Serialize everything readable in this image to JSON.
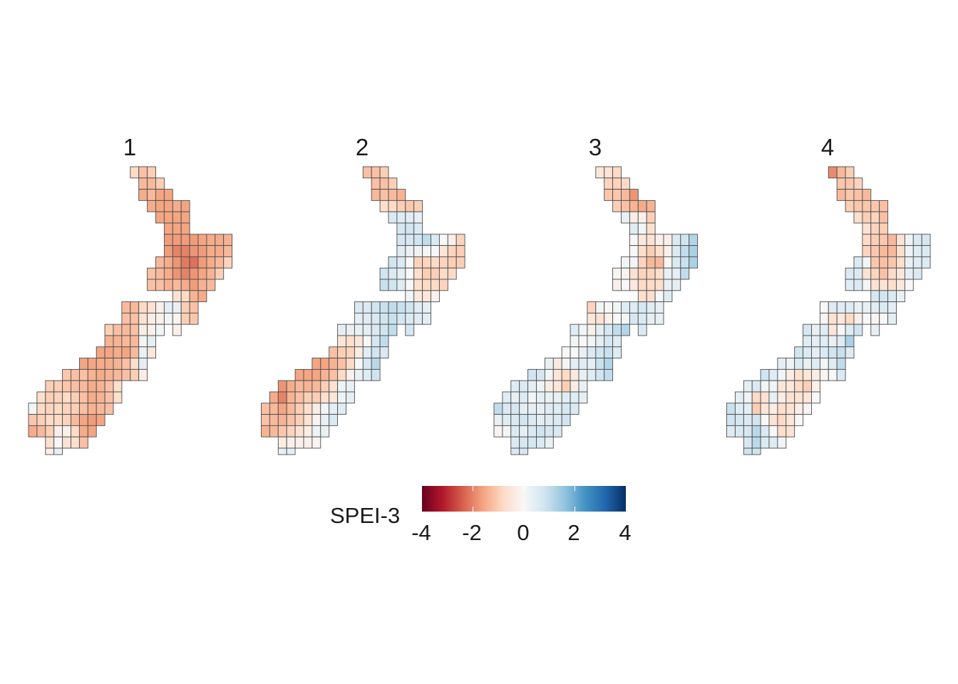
{
  "legend": {
    "title": "SPEI-3",
    "limits": [
      -4,
      4
    ],
    "ticks": [
      "-4",
      "-2",
      "0",
      "2",
      "4"
    ],
    "palette": [
      "#67001f",
      "#b2182b",
      "#d6604d",
      "#f4a582",
      "#fddbc7",
      "#f7f7f7",
      "#d1e5f0",
      "#92c5de",
      "#4393c3",
      "#2166ac",
      "#053061"
    ]
  },
  "chart_data": {
    "type": "heatmap",
    "value_name": "SPEI-3",
    "cell_size_deg": 0.5,
    "rows": [
      {
        "lat": -34.25,
        "lon_start": 172.75
      },
      {
        "lat": -34.75,
        "lon_start": 173.25
      },
      {
        "lat": -35.25,
        "lon_start": 173.25
      },
      {
        "lat": -35.75,
        "lon_start": 173.75
      },
      {
        "lat": -36.25,
        "lon_start": 174.25
      },
      {
        "lat": -36.75,
        "lon_start": 174.75
      },
      {
        "lat": -37.25,
        "lon_start": 174.75
      },
      {
        "lat": -37.75,
        "lon_start": 174.75
      },
      {
        "lat": -38.25,
        "lon_start": 174.25
      },
      {
        "lat": -38.75,
        "lon_start": 173.75
      },
      {
        "lat": -39.25,
        "lon_start": 173.75
      },
      {
        "lat": -39.75,
        "lon_start": 175.25
      },
      {
        "lat": -40.25,
        "lon_start": 172.25
      },
      {
        "lat": -40.75,
        "lon_start": 172.25
      },
      {
        "lat": -41.25,
        "lon_start": 171.25
      },
      {
        "lat": -41.75,
        "lon_start": 171.25
      },
      {
        "lat": -42.25,
        "lon_start": 170.75
      },
      {
        "lat": -42.75,
        "lon_start": 169.75
      },
      {
        "lat": -43.25,
        "lon_start": 168.75
      },
      {
        "lat": -43.75,
        "lon_start": 167.75
      },
      {
        "lat": -44.25,
        "lon_start": 167.25
      },
      {
        "lat": -44.75,
        "lon_start": 166.75
      },
      {
        "lat": -45.25,
        "lon_start": 166.75
      },
      {
        "lat": -45.75,
        "lon_start": 166.75
      },
      {
        "lat": -46.25,
        "lon_start": 167.75
      },
      {
        "lat": -46.75,
        "lon_start": 167.75
      }
    ],
    "panels": [
      {
        "title": "1",
        "values": [
          [
            -0.8,
            -1.2,
            -1.0
          ],
          [
            -1.3,
            -1.3,
            -1.0
          ],
          [
            -1.5,
            -1.3,
            -1.6,
            -1.6
          ],
          [
            -1.5,
            -1.6,
            -1.6,
            -1.5,
            -1.6
          ],
          [
            -1.6,
            -1.6,
            -1.6,
            -1.6
          ],
          [
            -1.6,
            -1.6,
            -1.6
          ],
          [
            -1.7,
            -1.7,
            -1.7,
            -1.7,
            -1.6,
            -1.5,
            -1.5,
            -1.4
          ],
          [
            -1.7,
            -2.0,
            -2.0,
            -1.8,
            -1.7,
            -1.5,
            -1.5,
            -1.3
          ],
          [
            -1.3,
            -1.5,
            -1.8,
            -2.1,
            -2.2,
            -1.7,
            -1.5,
            -1.3,
            -0.9
          ],
          [
            -1.2,
            -1.3,
            -1.5,
            -1.8,
            -2.0,
            -1.8,
            -1.6,
            -1.4,
            -1.0
          ],
          [
            -1.2,
            -1.2,
            -1.4,
            -1.3,
            -1.5,
            -1.7,
            -1.4,
            -1.3
          ],
          [
            -0.6,
            -0.8,
            -1.4,
            -1.5
          ],
          [
            -1.3,
            -1.3,
            -0.8,
            -0.6,
            -0.2,
            0.4,
            0.3,
            -1.0,
            -1.2
          ],
          [
            -1.2,
            -1.2,
            -0.6,
            -0.3,
            -0.2,
            0.1,
            -0.1,
            -1.0,
            -1.1
          ],
          [
            -1.0,
            -1.2,
            -1.3,
            -1.2,
            -0.3,
            -0.2,
            0.1,
            null,
            -0.2
          ],
          [
            -1.4,
            -1.4,
            -1.3,
            -1.3,
            0.1,
            0.4
          ],
          [
            -1.6,
            -1.6,
            -1.5,
            -1.6,
            -1.3,
            0.3,
            -0.5
          ],
          [
            -1.6,
            -1.6,
            -1.5,
            -1.5,
            -1.4,
            -1.2,
            -0.7,
            0.4
          ],
          [
            -1.1,
            -1.2,
            -1.2,
            -1.4,
            -1.5,
            -1.4,
            -1.3,
            -1.2,
            -1.0,
            -0.3
          ],
          [
            -1.0,
            -1.0,
            -1.1,
            -1.2,
            -1.3,
            -1.5,
            -1.4,
            -1.2,
            -0.7
          ],
          [
            -0.7,
            -1.0,
            -0.9,
            -0.8,
            -1.0,
            -1.2,
            -1.5,
            -1.4,
            -1.2,
            -0.7
          ],
          [
            0.1,
            -0.8,
            -0.9,
            -0.8,
            -0.9,
            -1.0,
            -1.2,
            -1.4,
            -1.3,
            -1.2
          ],
          [
            -1.1,
            -1.0,
            -0.8,
            -0.8,
            -0.9,
            -1.3,
            -1.6,
            -1.7,
            -1.6
          ],
          [
            -1.5,
            -1.3,
            -1.0,
            -0.2,
            -0.2,
            -0.8,
            -1.5,
            -1.6
          ],
          [
            -0.7,
            0.0,
            -0.6,
            -0.7,
            -1.2
          ],
          [
            -0.3,
            0.3
          ]
        ]
      },
      {
        "title": "2",
        "values": [
          [
            -1.2,
            -1.2,
            -1.0
          ],
          [
            -1.2,
            -1.2,
            -1.0
          ],
          [
            -1.3,
            -1.2,
            -1.3,
            -1.4
          ],
          [
            -0.7,
            -0.8,
            -1.0,
            -1.1,
            -1.0
          ],
          [
            0.6,
            0.5,
            0.5,
            0.3
          ],
          [
            0.7,
            0.8,
            0.6
          ],
          [
            0.7,
            0.7,
            0.8,
            1.0,
            0.6,
            0.0,
            -0.2,
            -0.9
          ],
          [
            0.5,
            0.3,
            0.2,
            0.1,
            0.0,
            -0.5,
            -0.9,
            -1.0
          ],
          [
            0.8,
            0.6,
            0.0,
            -0.9,
            -0.9,
            -0.8,
            -0.9,
            -1.0,
            -1.0
          ],
          [
            0.8,
            0.6,
            0.4,
            0.0,
            -0.7,
            -1.0,
            -1.0,
            -0.8,
            -0.8
          ],
          [
            0.9,
            0.8,
            0.5,
            0.0,
            -0.7,
            -0.8,
            -0.8,
            -0.9
          ],
          [
            0.1,
            -0.4,
            -0.5,
            -0.2
          ],
          [
            0.6,
            0.6,
            0.8,
            0.9,
            1.0,
            0.9,
            0.8,
            0.5,
            0.4
          ],
          [
            0.4,
            0.5,
            0.6,
            0.8,
            0.9,
            0.7,
            0.6,
            0.5,
            0.4
          ],
          [
            0.4,
            0.3,
            0.3,
            0.4,
            0.6,
            0.8,
            1.0,
            null,
            0.7
          ],
          [
            -0.5,
            -0.7,
            -0.5,
            0.0,
            0.7,
            1.0
          ],
          [
            -1.2,
            -1.0,
            -0.9,
            -0.3,
            0.5,
            0.8,
            0.6
          ],
          [
            -1.6,
            -1.6,
            -1.4,
            -1.2,
            -0.8,
            0.0,
            0.7,
            1.1
          ],
          [
            -1.6,
            -1.6,
            -1.6,
            -1.4,
            -1.2,
            -0.8,
            -0.2,
            0.3,
            0.5,
            0.8
          ],
          [
            -1.8,
            -1.5,
            -1.3,
            -1.4,
            -1.3,
            -1.0,
            -0.6,
            0.2,
            0.3
          ],
          [
            -1.5,
            -2.0,
            -1.4,
            -1.2,
            -1.0,
            -1.0,
            -0.7,
            -0.5,
            0.2,
            0.4
          ],
          [
            -1.2,
            -1.3,
            -1.6,
            -1.3,
            -1.0,
            -0.7,
            -0.3,
            0.1,
            0.4,
            0.5
          ],
          [
            -1.2,
            -1.3,
            -1.4,
            -1.2,
            -1.0,
            -0.6,
            -0.1,
            0.3,
            0.6
          ],
          [
            -1.4,
            -1.3,
            -1.1,
            -0.9,
            -0.6,
            -0.3,
            0.2,
            0.3
          ],
          [
            -0.3,
            -0.2,
            -0.2,
            -0.2,
            -0.1
          ],
          [
            0.3,
            0.4
          ]
        ]
      },
      {
        "title": "3",
        "values": [
          [
            -0.5,
            -0.6,
            -0.8
          ],
          [
            -0.9,
            -0.9,
            -0.8
          ],
          [
            -1.1,
            -1.1,
            -1.3,
            -1.8
          ],
          [
            -1.0,
            -1.2,
            -1.4,
            -1.5,
            -1.4
          ],
          [
            0.3,
            -0.3,
            -0.2,
            -1.0
          ],
          [
            0.5,
            0.1,
            -0.7
          ],
          [
            0.0,
            -0.4,
            -0.6,
            -0.2,
            -0.2,
            0.6,
            0.8,
            1.2
          ],
          [
            0.0,
            -0.7,
            -1.0,
            -0.7,
            -0.2,
            0.6,
            1.0,
            1.3
          ],
          [
            0.1,
            0.1,
            -0.9,
            -1.3,
            -1.3,
            -0.1,
            0.6,
            0.9,
            1.3
          ],
          [
            -0.1,
            -0.1,
            -0.6,
            -0.9,
            -0.9,
            -0.7,
            0.3,
            0.4,
            1.0
          ],
          [
            -0.2,
            0.0,
            -0.4,
            -0.8,
            -0.8,
            -0.7,
            0.3,
            0.4
          ],
          [
            -0.7,
            -0.7,
            0.0,
            0.5
          ],
          [
            -0.9,
            0.1,
            0.0,
            0.1,
            0.5,
            0.5,
            0.7,
            0.5,
            0.3
          ],
          [
            -0.5,
            -0.6,
            -0.2,
            0.0,
            0.1,
            0.7,
            0.6,
            0.4,
            0.3
          ],
          [
            0.5,
            0.1,
            -0.2,
            0.4,
            0.7,
            1.0,
            1.2,
            null,
            0.6
          ],
          [
            0.1,
            0.0,
            0.1,
            0.4,
            0.7,
            0.5
          ],
          [
            0.0,
            0.0,
            0.3,
            0.6,
            0.8,
            0.9,
            0.5
          ],
          [
            0.3,
            -0.4,
            0.1,
            0.4,
            0.5,
            0.4,
            0.9,
            1.2
          ],
          [
            0.8,
            0.7,
            0.1,
            -0.5,
            -0.8,
            -0.4,
            0.3,
            0.5,
            0.8,
            1.0
          ],
          [
            0.5,
            0.6,
            0.4,
            0.2,
            -0.3,
            -0.5,
            -1.0,
            -0.3,
            0.3
          ],
          [
            0.5,
            0.3,
            0.6,
            0.1,
            0.4,
            0.3,
            0.3,
            0.5,
            0.5,
            0.4
          ],
          [
            1.0,
            0.6,
            0.7,
            0.4,
            0.4,
            0.3,
            0.5,
            0.5,
            0.7,
            0.6
          ],
          [
            0.3,
            0.5,
            0.6,
            0.8,
            0.6,
            0.4,
            0.5,
            0.6,
            0.8
          ],
          [
            -0.1,
            0.1,
            0.6,
            0.4,
            0.6,
            0.8,
            0.7,
            0.6
          ],
          [
            0.6,
            0.7,
            0.7,
            0.6,
            0.3
          ],
          [
            0.6,
            0.7
          ]
        ]
      },
      {
        "title": "4",
        "values": [
          [
            -1.9,
            -1.3,
            -1.0
          ],
          [
            -1.1,
            -1.1,
            -0.9
          ],
          [
            -1.3,
            -1.1,
            -1.2,
            -1.3
          ],
          [
            -1.0,
            -1.1,
            -1.1,
            -1.1,
            -1.2
          ],
          [
            -0.7,
            -1.0,
            -0.9,
            -1.2
          ],
          [
            -0.6,
            -0.9,
            -1.0
          ],
          [
            -0.8,
            -1.0,
            -1.1,
            -1.3,
            -0.6,
            0.2,
            0.6,
            0.7
          ],
          [
            -0.9,
            -1.1,
            -1.3,
            -1.3,
            -0.7,
            0.2,
            0.5,
            0.6
          ],
          [
            0.6,
            0.1,
            -1.1,
            -1.2,
            -1.1,
            -0.7,
            0.3,
            0.5,
            0.6
          ],
          [
            0.6,
            0.6,
            -0.6,
            -0.9,
            -1.2,
            -0.8,
            -0.5,
            0.4,
            0.6
          ],
          [
            0.5,
            0.6,
            0.1,
            -0.6,
            -0.6,
            -0.7,
            -0.4,
            0.0
          ],
          [
            0.7,
            0.8,
            0.6,
            0.3
          ],
          [
            0.0,
            0.5,
            0.5,
            0.5,
            0.3,
            0.3,
            0.5,
            0.6,
            0.4
          ],
          [
            -0.1,
            -0.6,
            -0.4,
            -0.8,
            -0.2,
            0.0,
            -0.1,
            0.0,
            0.4
          ],
          [
            0.7,
            0.3,
            0.5,
            -0.5,
            0.0,
            0.5,
            0.8,
            null,
            0.3
          ],
          [
            0.5,
            0.4,
            0.5,
            0.3,
            0.5,
            1.3
          ],
          [
            0.8,
            0.6,
            0.4,
            0.6,
            0.8,
            0.9,
            0.5
          ],
          [
            0.4,
            0.2,
            0.6,
            0.3,
            0.5,
            0.1,
            0.5,
            1.0
          ],
          [
            0.8,
            0.5,
            0.1,
            -0.3,
            -0.7,
            -0.5,
            -0.3,
            -0.1,
            0.0,
            0.6
          ],
          [
            0.4,
            0.6,
            0.1,
            0.2,
            -0.5,
            -0.4,
            -0.8,
            -1.0,
            -0.2
          ],
          [
            0.4,
            0.2,
            -0.8,
            -0.6,
            0.3,
            -0.3,
            -0.6,
            -0.6,
            -0.5,
            0.0
          ],
          [
            0.9,
            0.5,
            0.4,
            -1.0,
            -0.5,
            -0.3,
            -0.7,
            -0.6,
            -0.3,
            -0.1
          ],
          [
            0.8,
            0.7,
            0.6,
            0.8,
            0.0,
            -0.6,
            -0.8,
            -0.5,
            0.0
          ],
          [
            0.5,
            0.6,
            0.7,
            1.1,
            0.6,
            0.0,
            -0.7,
            -0.6
          ],
          [
            0.7,
            1.1,
            0.6,
            0.5,
            0.1
          ],
          [
            0.8,
            0.8
          ]
        ]
      }
    ]
  }
}
